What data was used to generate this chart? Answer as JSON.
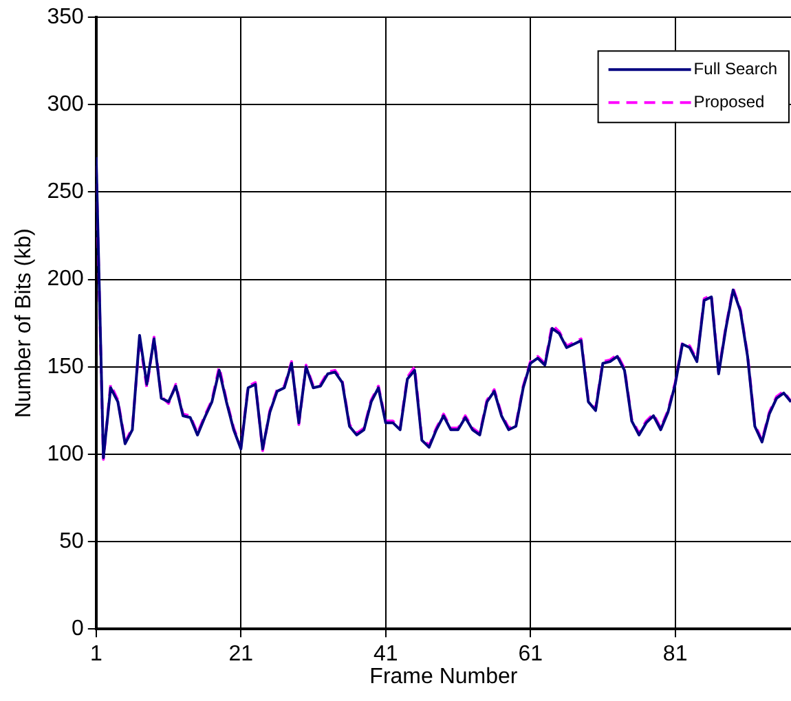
{
  "chart_data": {
    "type": "line",
    "xlabel": "Frame Number",
    "ylabel": "Number of Bits (kb)",
    "x": [
      1,
      2,
      3,
      4,
      5,
      6,
      7,
      8,
      9,
      10,
      11,
      12,
      13,
      14,
      15,
      16,
      17,
      18,
      19,
      20,
      21,
      22,
      23,
      24,
      25,
      26,
      27,
      28,
      29,
      30,
      31,
      32,
      33,
      34,
      35,
      36,
      37,
      38,
      39,
      40,
      41,
      42,
      43,
      44,
      45,
      46,
      47,
      48,
      49,
      50,
      51,
      52,
      53,
      54,
      55,
      56,
      57,
      58,
      59,
      60,
      61,
      62,
      63,
      64,
      65,
      66,
      67,
      68,
      69,
      70,
      71,
      72,
      73,
      74,
      75,
      76,
      77,
      78,
      79,
      80,
      81,
      82,
      83,
      84,
      85,
      86,
      87,
      88,
      89,
      90,
      91,
      92,
      93,
      94,
      95,
      96,
      97
    ],
    "xlim": [
      1,
      97
    ],
    "xticks": [
      1,
      21,
      41,
      61,
      81
    ],
    "ylim": [
      0,
      350
    ],
    "yticks": [
      0,
      50,
      100,
      150,
      200,
      250,
      300,
      350
    ],
    "grid": true,
    "legend": "top right",
    "marker": "none",
    "series": [
      {
        "name": "Full Search",
        "color": "#000080",
        "line_style": "solid",
        "values": [
          270,
          98,
          138,
          130,
          106,
          114,
          168,
          140,
          166,
          132,
          130,
          139,
          122,
          121,
          111,
          121,
          130,
          148,
          130,
          114,
          103,
          138,
          140,
          103,
          124,
          136,
          138,
          152,
          118,
          150,
          138,
          139,
          146,
          147,
          141,
          116,
          111,
          114,
          130,
          138,
          118,
          118,
          114,
          143,
          148,
          108,
          104,
          114,
          122,
          114,
          114,
          121,
          114,
          111,
          130,
          136,
          122,
          114,
          116,
          138,
          152,
          155,
          151,
          172,
          169,
          161,
          163,
          165,
          130,
          125,
          152,
          153,
          156,
          148,
          119,
          111,
          118,
          122,
          114,
          124,
          140,
          163,
          161,
          153,
          188,
          190,
          146,
          172,
          194,
          182,
          156,
          116,
          107,
          123,
          132,
          135,
          130
        ]
      },
      {
        "name": "Proposed",
        "color": "#ff00ff",
        "line_style": "dashed",
        "values": [
          265,
          97,
          140,
          131,
          107,
          115,
          166,
          138,
          167,
          133,
          129,
          140,
          123,
          122,
          112,
          122,
          131,
          150,
          131,
          115,
          104,
          139,
          141,
          102,
          125,
          137,
          139,
          153,
          117,
          151,
          139,
          140,
          147,
          148,
          142,
          117,
          112,
          115,
          131,
          139,
          119,
          119,
          115,
          144,
          150,
          109,
          105,
          115,
          123,
          115,
          115,
          122,
          115,
          112,
          131,
          137,
          123,
          115,
          117,
          139,
          153,
          156,
          152,
          174,
          170,
          162,
          164,
          166,
          131,
          126,
          153,
          154,
          157,
          149,
          120,
          112,
          119,
          123,
          115,
          125,
          141,
          164,
          162,
          154,
          189,
          191,
          147,
          173,
          195,
          183,
          157,
          117,
          108,
          124,
          133,
          136,
          130
        ]
      }
    ]
  }
}
